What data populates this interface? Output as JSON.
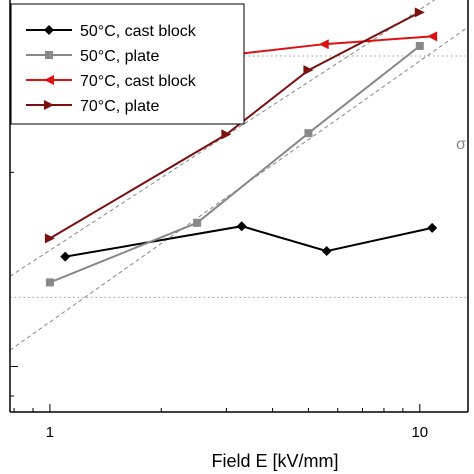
{
  "chart_data": {
    "type": "line",
    "title": "",
    "xlabel": "Field E [kV/mm]",
    "ylabel": "",
    "x_scale": "log",
    "y_scale": "log",
    "xlim": [
      0.78,
      13.5
    ],
    "ylim": [
      0.85,
      3.7
    ],
    "x_ticks": [
      1,
      10
    ],
    "x_tick_labels": [
      "1",
      "10"
    ],
    "grid": false,
    "legend_position": "top-left",
    "reference_lines": {
      "dotted_y": [
        1.28,
        3.03
      ],
      "dashed": [
        {
          "from": [
            0.78,
            1.38
          ],
          "to": [
            13.5,
            4.0
          ]
        },
        {
          "from": [
            0.78,
            1.06
          ],
          "to": [
            13.5,
            3.36
          ]
        }
      ]
    },
    "annotation": "σ",
    "series": [
      {
        "name": "50°C, cast block",
        "color": "#000000",
        "marker": "diamond",
        "x": [
          1.1,
          3.3,
          5.6,
          10.8
        ],
        "y": [
          1.48,
          1.65,
          1.51,
          1.64
        ]
      },
      {
        "name": "50°C, plate",
        "color": "#888888",
        "marker": "square",
        "x": [
          1.0,
          2.5,
          5.0,
          10.0
        ],
        "y": [
          1.35,
          1.67,
          2.3,
          3.14
        ]
      },
      {
        "name": "70°C, cast block",
        "color": "#dd1111",
        "marker": "triangle-left",
        "x": [
          1.05,
          3.2,
          5.5,
          10.8
        ],
        "y": [
          3.11,
          3.05,
          3.16,
          3.25
        ]
      },
      {
        "name": "70°C, plate",
        "color": "#7a1010",
        "marker": "triangle-right",
        "x": [
          1.0,
          3.0,
          5.0,
          10.0
        ],
        "y": [
          1.58,
          2.29,
          2.88,
          3.54
        ]
      }
    ]
  }
}
